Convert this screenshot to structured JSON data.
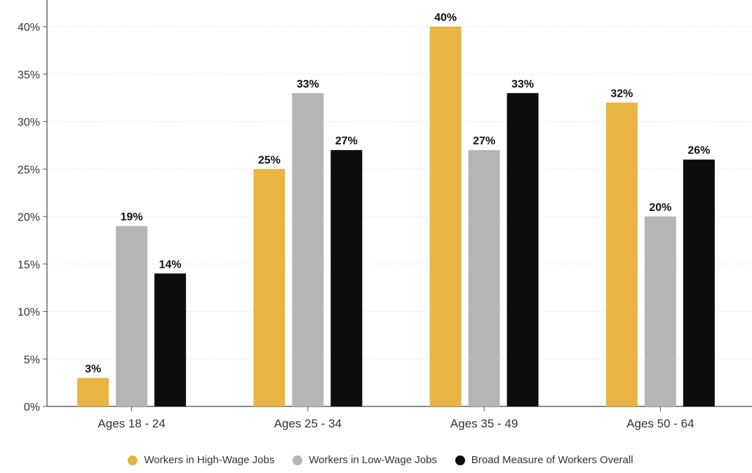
{
  "chart_data": {
    "type": "bar",
    "title": "",
    "xlabel": "",
    "ylabel": "",
    "categories": [
      "Ages 18 - 24",
      "Ages 25 - 34",
      "Ages 35 - 49",
      "Ages 50 - 64"
    ],
    "series": [
      {
        "name": "Workers in High-Wage Jobs",
        "color": "#e9b441",
        "values": [
          3,
          25,
          40,
          32
        ],
        "labels": [
          "3%",
          "25%",
          "40%",
          "32%"
        ]
      },
      {
        "name": "Workers in Low-Wage Jobs",
        "color": "#b5b5b8",
        "values": [
          19,
          33,
          27,
          20
        ],
        "labels": [
          "19%",
          "33%",
          "27%",
          "20%"
        ]
      },
      {
        "name": "Broad Measure of Workers Overall",
        "color": "#0d0d0d",
        "values": [
          14,
          27,
          33,
          26
        ],
        "labels": [
          "14%",
          "27%",
          "33%",
          "26%"
        ]
      }
    ],
    "ylim": [
      0,
      40
    ],
    "yticks": [
      0,
      5,
      10,
      15,
      20,
      25,
      30,
      35,
      40
    ],
    "ytick_labels": [
      "0%",
      "5%",
      "10%",
      "15%",
      "20%",
      "25%",
      "30%",
      "35%",
      "40%"
    ],
    "grid": true,
    "legend_position": "bottom-center"
  }
}
